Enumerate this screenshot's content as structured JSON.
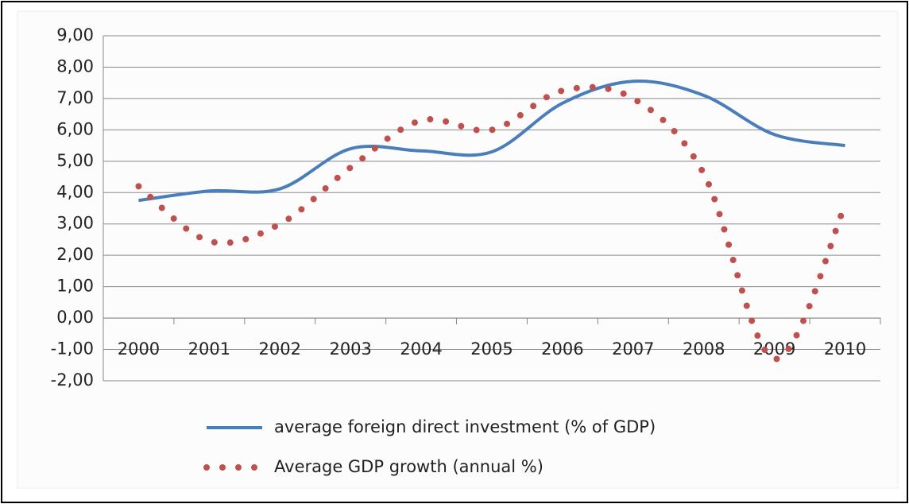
{
  "chart_data": {
    "type": "line",
    "categories": [
      "2000",
      "2001",
      "2002",
      "2003",
      "2004",
      "2005",
      "2006",
      "2007",
      "2008",
      "2009",
      "2010"
    ],
    "series": [
      {
        "name": "average foreign direct investment (% of GDP)",
        "color": "#4a7ebb",
        "style": "solid",
        "values": [
          3.75,
          4.05,
          4.12,
          5.4,
          5.33,
          5.3,
          6.85,
          7.55,
          7.1,
          5.85,
          5.5
        ]
      },
      {
        "name": "Average GDP growth (annual %)",
        "color": "#c0504d",
        "style": "dotted",
        "values": [
          4.2,
          2.45,
          3.0,
          4.8,
          6.3,
          6.0,
          7.25,
          7.0,
          4.6,
          -1.3,
          3.6
        ]
      }
    ],
    "ylim": [
      -2,
      9
    ],
    "yticks": [
      {
        "value": -2,
        "label": "-2,00"
      },
      {
        "value": -1,
        "label": "-1,00"
      },
      {
        "value": 0,
        "label": "0,00"
      },
      {
        "value": 1,
        "label": "1,00"
      },
      {
        "value": 2,
        "label": "2,00"
      },
      {
        "value": 3,
        "label": "3,00"
      },
      {
        "value": 4,
        "label": "4,00"
      },
      {
        "value": 5,
        "label": "5,00"
      },
      {
        "value": 6,
        "label": "6,00"
      },
      {
        "value": 7,
        "label": "7,00"
      },
      {
        "value": 8,
        "label": "8,00"
      },
      {
        "value": 9,
        "label": "9,00"
      }
    ],
    "grid": true,
    "smooth": true,
    "legend": "bottom"
  }
}
